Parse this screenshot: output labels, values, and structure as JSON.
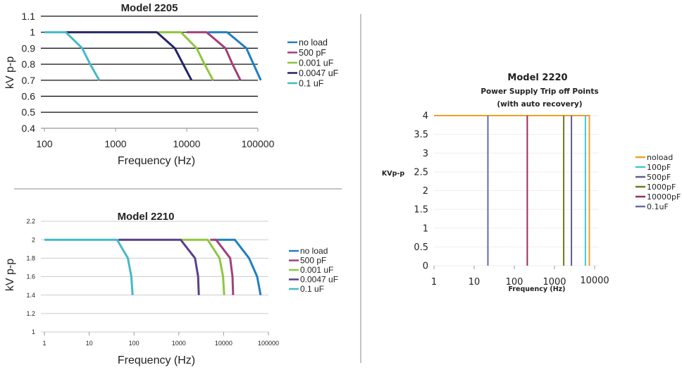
{
  "chart_data": [
    {
      "type": "line",
      "title": "Model 2205",
      "xlabel": "Frequency (Hz)",
      "ylabel": "kV p-p",
      "x_scale": "log",
      "xlim": [
        100,
        100000
      ],
      "ylim": [
        0.4,
        1.1
      ],
      "x_ticks": [
        "100",
        "1000",
        "10000",
        "100000"
      ],
      "y_ticks": [
        "0.4",
        "0.5",
        "0.6",
        "0.7",
        "0.8",
        "0.9",
        "1",
        "1.1"
      ],
      "grid": "horizontal",
      "legend": "right",
      "series": [
        {
          "name": "no load",
          "color": "#1f7fc0",
          "x": [
            20000,
            37000,
            69000,
            87000,
            110000
          ],
          "y": [
            1,
            1,
            0.9,
            0.8,
            0.7
          ]
        },
        {
          "name": "500 pF",
          "color": "#a0407a",
          "x": [
            10000,
            19000,
            35000,
            44000,
            57000
          ],
          "y": [
            1,
            1,
            0.9,
            0.8,
            0.7
          ]
        },
        {
          "name": "0.001 uF",
          "color": "#8dc63f",
          "x": [
            4000,
            8300,
            13800,
            17800,
            23500
          ],
          "y": [
            1,
            1,
            0.9,
            0.8,
            0.7
          ]
        },
        {
          "name": "0.0047 uF",
          "color": "#25246a",
          "x": [
            200,
            3800,
            6800,
            8900,
            11700
          ],
          "y": [
            1,
            1,
            0.9,
            0.8,
            0.7
          ]
        },
        {
          "name": "0.1 uF",
          "color": "#45b8c8",
          "x": [
            100,
            200,
            340,
            440,
            590
          ],
          "y": [
            1,
            1,
            0.9,
            0.8,
            0.7
          ]
        }
      ]
    },
    {
      "type": "line",
      "title": "Model 2210",
      "xlabel": "Frequency (Hz)",
      "ylabel": "kV p-p",
      "x_scale": "log",
      "xlim": [
        1,
        100000
      ],
      "ylim": [
        1,
        2.2
      ],
      "x_ticks": [
        "1",
        "10",
        "100",
        "1000",
        "10000",
        "100000"
      ],
      "y_ticks": [
        "1",
        "1.2",
        "1.4",
        "1.6",
        "1.8",
        "2",
        "2.2"
      ],
      "grid": "horizontal",
      "legend": "right",
      "series": [
        {
          "name": "no load",
          "color": "#1f7fc0",
          "x": [
            6000,
            17800,
            37000,
            56000,
            67000
          ],
          "y": [
            2,
            2,
            1.8,
            1.6,
            1.4
          ]
        },
        {
          "name": "500 pF",
          "color": "#a0407a",
          "x": [
            5000,
            6800,
            14000,
            15800,
            16300
          ],
          "y": [
            2,
            2,
            1.8,
            1.6,
            1.4
          ]
        },
        {
          "name": "0.001 uF",
          "color": "#8dc63f",
          "x": [
            1100,
            4400,
            8100,
            9700,
            10300
          ],
          "y": [
            2,
            2,
            1.8,
            1.6,
            1.4
          ]
        },
        {
          "name": "0.0047 uF",
          "color": "#5a3f8a",
          "x": [
            45,
            1100,
            2300,
            2700,
            2800
          ],
          "y": [
            2,
            2,
            1.8,
            1.6,
            1.4
          ]
        },
        {
          "name": "0.1 uF",
          "color": "#45b8c8",
          "x": [
            1,
            42,
            73,
            87,
            93
          ],
          "y": [
            2,
            2,
            1.8,
            1.6,
            1.4
          ]
        }
      ]
    },
    {
      "type": "line",
      "title": "Model 2220",
      "subtitle": [
        "Power Supply Trip off Points",
        "(with auto recovery)"
      ],
      "xlabel": "Frequency (Hz)",
      "ylabel": "KVp-p",
      "x_scale": "log",
      "xlim": [
        1,
        30000
      ],
      "ylim": [
        0,
        4
      ],
      "x_ticks": [
        "1",
        "10",
        "100",
        "1000",
        "10000"
      ],
      "y_ticks": [
        "0",
        "0.5",
        "1",
        "1.5",
        "2",
        "2.5",
        "3",
        "3.5",
        "4"
      ],
      "grid": "horizontal",
      "legend": "right",
      "series": [
        {
          "name": "noload",
          "color": "#f0a028",
          "x": [
            1,
            7400,
            7400
          ],
          "y": [
            4,
            4,
            0
          ]
        },
        {
          "name": "100pF",
          "color": "#40c8d0",
          "x": [
            5900,
            5900
          ],
          "y": [
            4,
            0
          ]
        },
        {
          "name": "500pF",
          "color": "#5e5e8e",
          "x": [
            2650,
            2650
          ],
          "y": [
            4,
            0
          ]
        },
        {
          "name": "1000pF",
          "color": "#6b7a1a",
          "x": [
            1700,
            1700
          ],
          "y": [
            4,
            0
          ]
        },
        {
          "name": "10000pF",
          "color": "#9b2c5a",
          "x": [
            210,
            210
          ],
          "y": [
            4,
            0
          ]
        },
        {
          "name": "0.1uF",
          "color": "#6a6aa8",
          "x": [
            22,
            22
          ],
          "y": [
            4,
            0
          ]
        }
      ]
    }
  ]
}
